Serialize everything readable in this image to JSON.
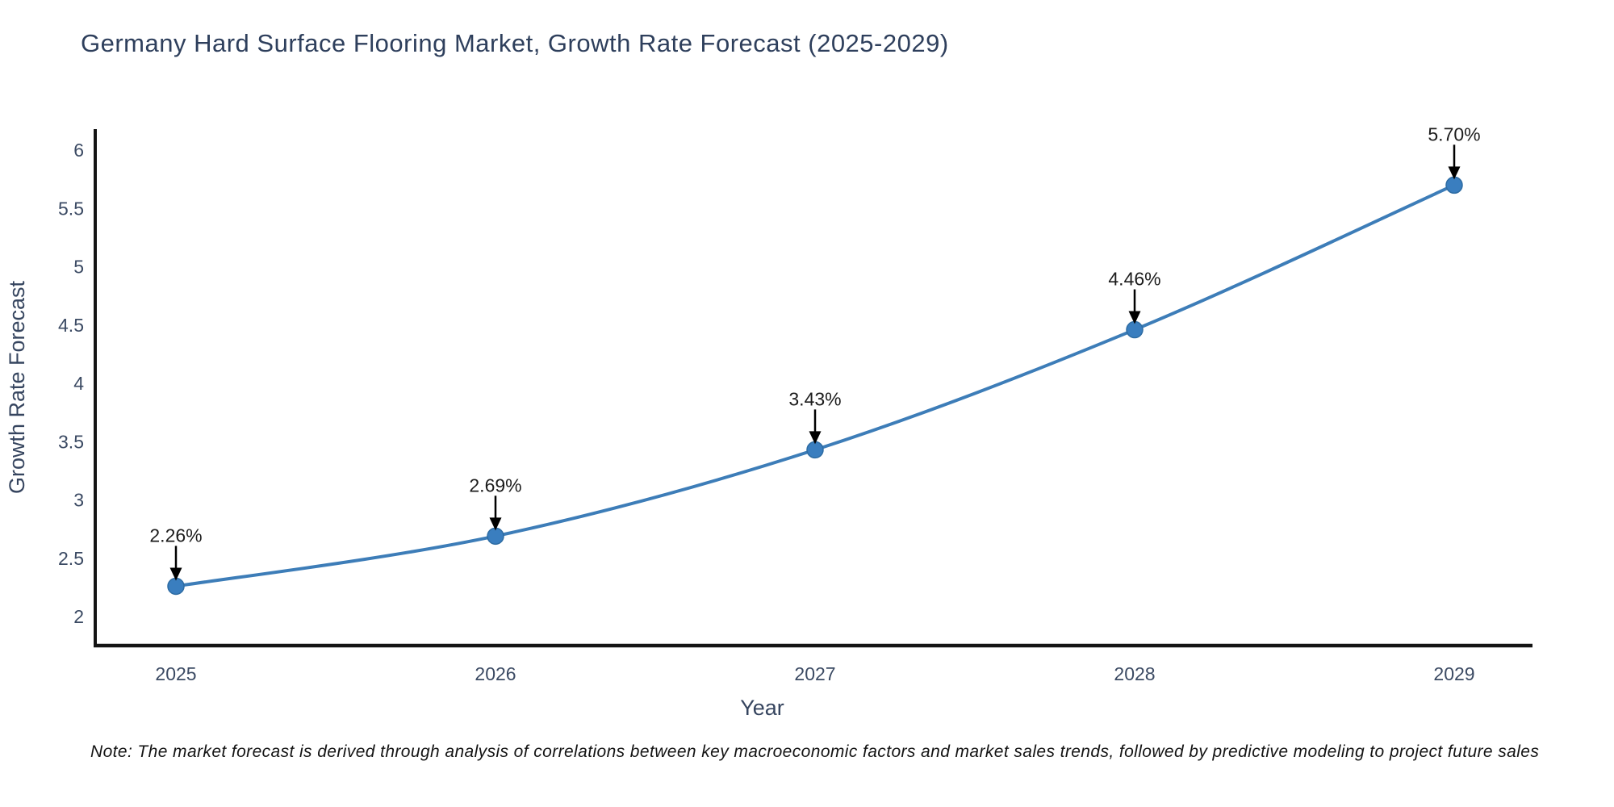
{
  "note": "Note: The market forecast is derived through analysis of correlations between key macroeconomic factors and market sales trends, followed by predictive modeling to project future sales",
  "chart_data": {
    "type": "line",
    "title": "Germany Hard Surface Flooring Market, Growth Rate Forecast (2025-2029)",
    "xlabel": "Year",
    "ylabel": "Growth Rate Forecast",
    "x": [
      2025,
      2026,
      2027,
      2028,
      2029
    ],
    "values": [
      2.26,
      2.69,
      3.43,
      4.46,
      5.7
    ],
    "point_labels": [
      "2.26%",
      "2.69%",
      "3.43%",
      "4.46%",
      "5.70%"
    ],
    "x_tick_labels": [
      "2025",
      "2026",
      "2027",
      "2028",
      "2029"
    ],
    "y_ticks": [
      2,
      2.5,
      3,
      3.5,
      4,
      4.5,
      5,
      5.5,
      6
    ],
    "y_tick_labels": [
      "2",
      "2.5",
      "3",
      "3.5",
      "4",
      "4.5",
      "5",
      "5.5",
      "6"
    ],
    "ylim": [
      1.751,
      6.18
    ],
    "grid": false,
    "legend": "none",
    "colors": {
      "line": "#3d7db8",
      "marker_fill": "#3a7ebf",
      "marker_edge": "#2e6ca3",
      "annotation_text": "#1c1c1c",
      "annotation_arrow": "#000000",
      "axis_spine": "#141414",
      "tick_label": "#3b4a63",
      "axis_label": "#36455f",
      "title": "#2e3f5c"
    }
  }
}
